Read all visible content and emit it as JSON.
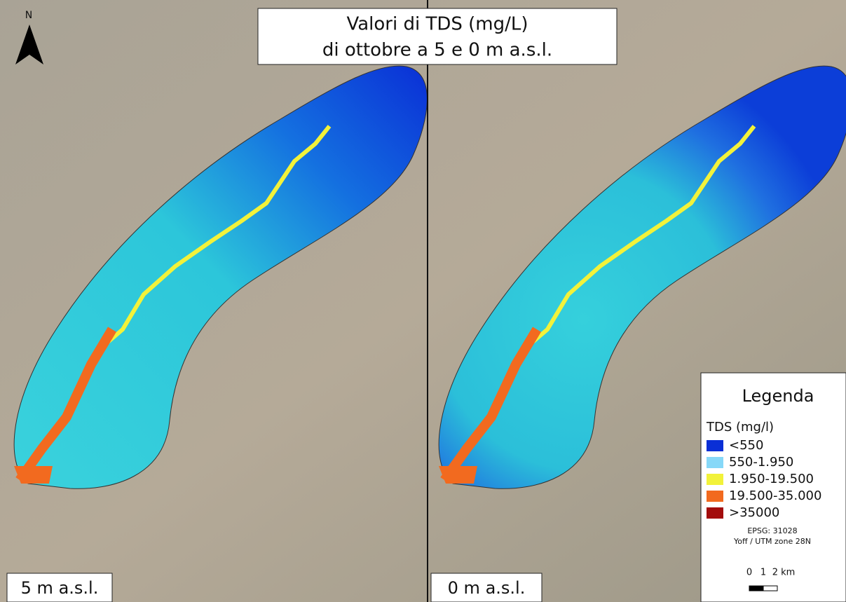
{
  "title": {
    "lines": [
      "Valori di TDS (mg/L)",
      "di ottobre a 5 e 0 m a.s.l."
    ]
  },
  "north_arrow": {
    "label": "N"
  },
  "panels": [
    {
      "label": "5 m a.s.l."
    },
    {
      "label": "0 m a.s.l."
    }
  ],
  "legend": {
    "title": "Legenda",
    "subtitle": "TDS (mg/l)",
    "items": [
      {
        "label": "<550",
        "color": "#0a2fd6"
      },
      {
        "label": "550-1.950",
        "color": "#86d8f8"
      },
      {
        "label": "1.950-19.500",
        "color": "#f2f23a"
      },
      {
        "label": "19.500-35.000",
        "color": "#f26a1f"
      },
      {
        "label": ">35000",
        "color": "#a30d0d"
      }
    ],
    "crs": [
      "EPSG: 31028",
      "Yoff / UTM zone 28N"
    ],
    "scale": [
      "0",
      "1",
      "2 km"
    ]
  }
}
